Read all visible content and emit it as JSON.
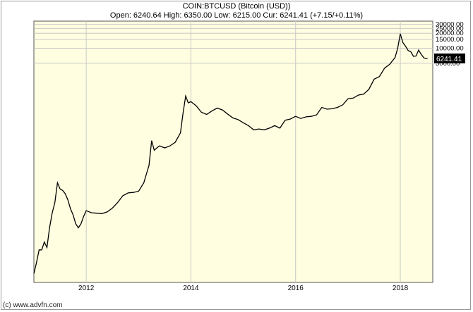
{
  "header": {
    "line1": "COIN:BTCUSD (Bitcoin (USD))",
    "line2": "Open: 6240.64 High: 6350.00 Low: 6215.00 Cur: 6241.41 (+7.15/+0.11%)"
  },
  "footer": {
    "credit": "(c) www.advfn.com"
  },
  "colors": {
    "plot_bg": "#fffee0",
    "line": "#000000",
    "grid": "#c8c8c8",
    "price_tag_bg": "#000000",
    "price_tag_text": "#ffffff"
  },
  "chart_data": {
    "type": "line",
    "title": "COIN:BTCUSD (Bitcoin (USD))",
    "y_scale": "log",
    "x_ticks": [
      "2012",
      "2014",
      "2016",
      "2018"
    ],
    "y_ticks": [
      "30000.00",
      "25000.00",
      "20000.00",
      "15000.00",
      "10000.00",
      "5000.00"
    ],
    "current_price_label": "6241.41",
    "grid": true,
    "series": [
      {
        "values_note": "",
        "x": [
          2011.0,
          2011.05,
          2011.1,
          2011.15,
          2011.2,
          2011.25,
          2011.3,
          2011.35,
          2011.4,
          2011.45,
          2011.5,
          2011.55,
          2011.6,
          2011.65,
          2011.7,
          2011.75,
          2011.8,
          2011.85,
          2011.9,
          2011.95,
          2012.0,
          2012.1,
          2012.2,
          2012.3,
          2012.4,
          2012.5,
          2012.6,
          2012.7,
          2012.8,
          2012.9,
          2013.0,
          2013.1,
          2013.15,
          2013.2,
          2013.25,
          2013.3,
          2013.35,
          2013.4,
          2013.5,
          2013.6,
          2013.7,
          2013.8,
          2013.85,
          2013.9,
          2013.95,
          2014.0,
          2014.1,
          2014.2,
          2014.3,
          2014.4,
          2014.5,
          2014.6,
          2014.7,
          2014.8,
          2014.9,
          2015.0,
          2015.1,
          2015.2,
          2015.3,
          2015.4,
          2015.5,
          2015.6,
          2015.7,
          2015.8,
          2015.9,
          2016.0,
          2016.1,
          2016.2,
          2016.3,
          2016.4,
          2016.5,
          2016.6,
          2016.7,
          2016.8,
          2016.9,
          2017.0,
          2017.1,
          2017.2,
          2017.3,
          2017.4,
          2017.5,
          2017.6,
          2017.7,
          2017.8,
          2017.9,
          2017.95,
          2018.0,
          2018.05,
          2018.1,
          2018.15,
          2018.2,
          2018.25,
          2018.3,
          2018.35,
          2018.4,
          2018.45,
          2018.5,
          2018.52
        ],
        "y": [
          0.3,
          0.5,
          0.9,
          0.9,
          1.3,
          1.0,
          2.5,
          5,
          8,
          20,
          15,
          14,
          12,
          9,
          6,
          4.5,
          3,
          2.5,
          3,
          4.2,
          5.5,
          5,
          4.9,
          4.8,
          5.2,
          6.2,
          8,
          11,
          12.5,
          12.8,
          13.5,
          20,
          30,
          45,
          140,
          90,
          100,
          110,
          100,
          110,
          130,
          200,
          500,
          1100,
          800,
          850,
          700,
          520,
          470,
          550,
          630,
          580,
          480,
          400,
          370,
          320,
          280,
          230,
          240,
          230,
          250,
          280,
          250,
          360,
          380,
          430,
          390,
          420,
          430,
          460,
          650,
          600,
          610,
          650,
          730,
          970,
          1000,
          1150,
          1200,
          1500,
          2400,
          2700,
          4000,
          4800,
          6500,
          10000,
          19500,
          13000,
          11000,
          9000,
          8500,
          6900,
          7000,
          9200,
          7500,
          6400,
          6200,
          6241
        ]
      }
    ]
  }
}
